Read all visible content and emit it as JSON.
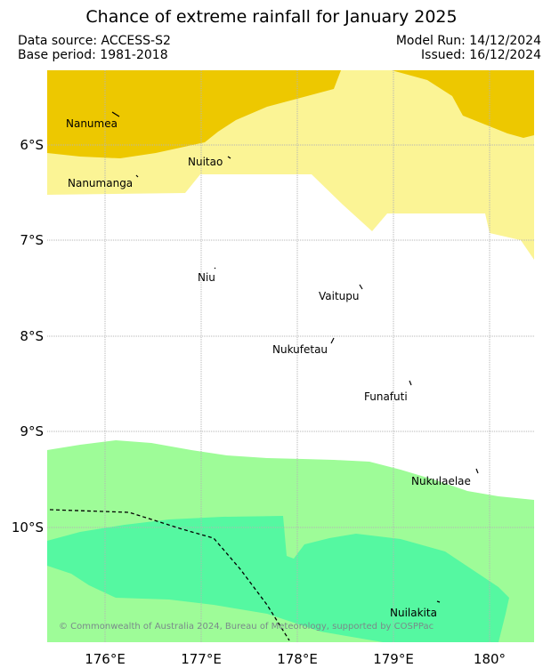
{
  "title": "Chance of extreme rainfall for January 2025",
  "meta": {
    "data_source": "Data source: ACCESS-S2",
    "base_period": "Base period: 1981-2018",
    "model_run": "Model Run: 14/12/2024",
    "issued": "Issued: 16/12/2024"
  },
  "credit": "© Commonwealth of Australia 2024, Bureau of Meteorology, supported by COSPPac",
  "axes": {
    "x_ticks": [
      "176°E",
      "177°E",
      "178°E",
      "179°E",
      "180°"
    ],
    "y_ticks": [
      "6°S",
      "7°S",
      "8°S",
      "9°S",
      "10°S"
    ]
  },
  "places": [
    {
      "name": "Nanumea"
    },
    {
      "name": "Nuitao"
    },
    {
      "name": "Nanumanga"
    },
    {
      "name": "Niu"
    },
    {
      "name": "Vaitupu"
    },
    {
      "name": "Nukufetau"
    },
    {
      "name": "Funafuti"
    },
    {
      "name": "Nukulaelae"
    },
    {
      "name": "Nuilakita"
    }
  ],
  "colors": {
    "dark_yellow": "#edc800",
    "light_yellow": "#fbf495",
    "light_green": "#9efc98",
    "mid_green": "#55f8a1",
    "grid": "#b4b4b4"
  }
}
